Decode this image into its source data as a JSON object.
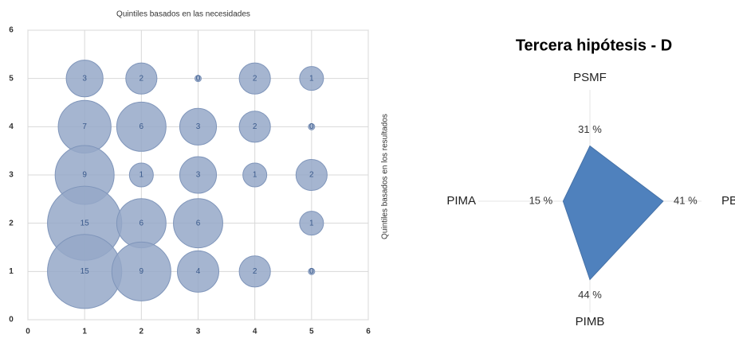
{
  "chart_data": [
    {
      "type": "bubble",
      "title": "Quintiles basados en las necesidades",
      "ylabel": "Quintiles basados en los resultados",
      "x": [
        1,
        2,
        3,
        4,
        5,
        1,
        2,
        3,
        4,
        5,
        1,
        2,
        3,
        4,
        5,
        1,
        2,
        3,
        5,
        1,
        2,
        3,
        4,
        5
      ],
      "values": [
        5,
        5,
        5,
        5,
        5,
        4,
        4,
        4,
        4,
        4,
        3,
        3,
        3,
        3,
        3,
        2,
        2,
        2,
        2,
        1,
        1,
        1,
        1,
        1
      ],
      "sizes": [
        3,
        2,
        0,
        2,
        1,
        7,
        6,
        3,
        2,
        0,
        9,
        1,
        3,
        1,
        2,
        15,
        6,
        6,
        1,
        15,
        9,
        4,
        2,
        0
      ],
      "color": "#95a8c8",
      "xlim": [
        0,
        6
      ],
      "ylim": [
        0,
        6
      ],
      "xticks": [
        0,
        1,
        2,
        3,
        4,
        5,
        6
      ],
      "yticks": [
        0,
        1,
        2,
        3,
        4,
        5,
        6
      ],
      "grid": true
    },
    {
      "type": "radar",
      "title": "Tercera hipótesis - D",
      "categories": [
        "PSMF",
        "PBI",
        "PIMB",
        "PIMA"
      ],
      "values": [
        31,
        41,
        44,
        15
      ],
      "value_labels": [
        "31 %",
        "41 %",
        "44 %",
        "15 %"
      ],
      "color": "#4f81bd",
      "rlim": [
        0,
        50
      ]
    }
  ]
}
